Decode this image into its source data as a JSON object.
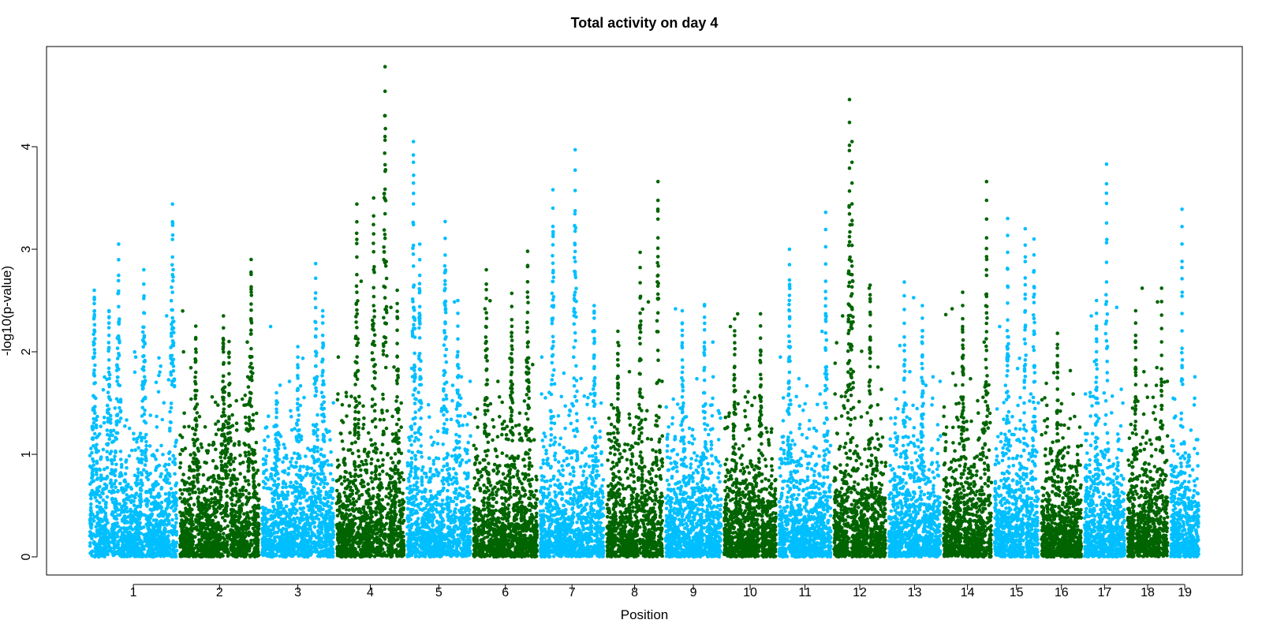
{
  "chart_data": {
    "type": "scatter",
    "title": "Total activity on day 4",
    "xlabel": "Position",
    "ylabel": "-log10(p-value)",
    "ylim": [
      0,
      4.8
    ],
    "y_ticks": [
      0,
      1,
      2,
      3,
      4
    ],
    "grid": false,
    "legend": "none",
    "colors": {
      "odd": "#00bfff",
      "even": "#006400"
    },
    "chromosomes": [
      {
        "label": "1",
        "max": 3.44,
        "peaks": [
          {
            "pos": 0.05,
            "h": 2.6
          },
          {
            "pos": 0.22,
            "h": 2.4
          },
          {
            "pos": 0.33,
            "h": 3.05
          },
          {
            "pos": 0.62,
            "h": 2.8
          },
          {
            "pos": 0.95,
            "h": 3.44
          }
        ]
      },
      {
        "label": "2",
        "max": 2.9,
        "peaks": [
          {
            "pos": 0.2,
            "h": 2.25
          },
          {
            "pos": 0.55,
            "h": 2.35
          },
          {
            "pos": 0.62,
            "h": 2.1
          },
          {
            "pos": 0.9,
            "h": 2.9
          }
        ]
      },
      {
        "label": "3",
        "max": 2.86,
        "peaks": [
          {
            "pos": 0.2,
            "h": 1.6
          },
          {
            "pos": 0.5,
            "h": 2.05
          },
          {
            "pos": 0.75,
            "h": 2.86
          },
          {
            "pos": 0.85,
            "h": 2.4
          }
        ]
      },
      {
        "label": "4",
        "max": 4.78,
        "peaks": [
          {
            "pos": 0.3,
            "h": 3.44
          },
          {
            "pos": 0.55,
            "h": 3.5
          },
          {
            "pos": 0.72,
            "h": 4.78
          },
          {
            "pos": 0.9,
            "h": 2.6
          }
        ]
      },
      {
        "label": "5",
        "max": 4.05,
        "peaks": [
          {
            "pos": 0.1,
            "h": 4.05
          },
          {
            "pos": 0.2,
            "h": 3.05
          },
          {
            "pos": 0.6,
            "h": 3.27
          },
          {
            "pos": 0.8,
            "h": 2.5
          }
        ]
      },
      {
        "label": "6",
        "max": 2.98,
        "peaks": [
          {
            "pos": 0.2,
            "h": 2.8
          },
          {
            "pos": 0.6,
            "h": 2.57
          },
          {
            "pos": 0.85,
            "h": 2.98
          }
        ]
      },
      {
        "label": "7",
        "max": 3.97,
        "peaks": [
          {
            "pos": 0.2,
            "h": 3.58
          },
          {
            "pos": 0.55,
            "h": 3.97
          },
          {
            "pos": 0.85,
            "h": 2.45
          }
        ]
      },
      {
        "label": "8",
        "max": 3.66,
        "peaks": [
          {
            "pos": 0.2,
            "h": 2.2
          },
          {
            "pos": 0.6,
            "h": 2.97
          },
          {
            "pos": 0.92,
            "h": 3.66
          }
        ]
      },
      {
        "label": "9",
        "max": 2.46,
        "peaks": [
          {
            "pos": 0.3,
            "h": 2.4
          },
          {
            "pos": 0.7,
            "h": 2.46
          }
        ]
      },
      {
        "label": "10",
        "max": 2.37,
        "peaks": [
          {
            "pos": 0.2,
            "h": 2.32
          },
          {
            "pos": 0.7,
            "h": 2.37
          }
        ]
      },
      {
        "label": "11",
        "max": 3.36,
        "peaks": [
          {
            "pos": 0.2,
            "h": 3.0
          },
          {
            "pos": 0.9,
            "h": 3.36
          }
        ]
      },
      {
        "label": "12",
        "max": 4.46,
        "peaks": [
          {
            "pos": 0.3,
            "h": 4.46
          },
          {
            "pos": 0.35,
            "h": 4.05
          },
          {
            "pos": 0.7,
            "h": 2.65
          }
        ]
      },
      {
        "label": "13",
        "max": 2.68,
        "peaks": [
          {
            "pos": 0.3,
            "h": 2.68
          },
          {
            "pos": 0.65,
            "h": 2.45
          }
        ]
      },
      {
        "label": "14",
        "max": 3.66,
        "peaks": [
          {
            "pos": 0.4,
            "h": 2.58
          },
          {
            "pos": 0.9,
            "h": 3.66
          }
        ]
      },
      {
        "label": "15",
        "max": 3.3,
        "peaks": [
          {
            "pos": 0.3,
            "h": 3.3
          },
          {
            "pos": 0.7,
            "h": 3.2
          },
          {
            "pos": 0.9,
            "h": 3.1
          }
        ]
      },
      {
        "label": "16",
        "max": 2.18,
        "peaks": [
          {
            "pos": 0.4,
            "h": 2.18
          }
        ]
      },
      {
        "label": "17",
        "max": 3.83,
        "peaks": [
          {
            "pos": 0.3,
            "h": 2.5
          },
          {
            "pos": 0.55,
            "h": 3.83
          }
        ]
      },
      {
        "label": "18",
        "max": 2.62,
        "peaks": [
          {
            "pos": 0.2,
            "h": 2.4
          },
          {
            "pos": 0.85,
            "h": 2.62
          }
        ]
      },
      {
        "label": "19",
        "max": 3.39,
        "peaks": [
          {
            "pos": 0.4,
            "h": 3.39
          }
        ]
      }
    ]
  }
}
